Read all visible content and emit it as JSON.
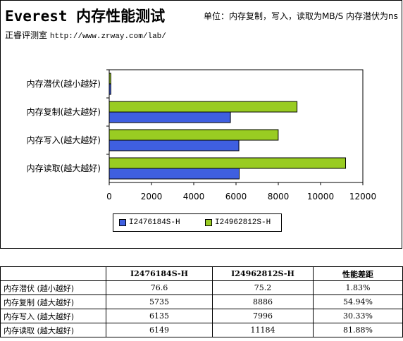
{
  "header": {
    "title": "Everest 内存性能测试",
    "unit_note": "单位：内存复制，写入，读取为MB/S 内存潜伏为ns",
    "source_name": "正睿评测室",
    "source_url": "http://www.zrway.com/lab/"
  },
  "chart_data": {
    "type": "bar",
    "orientation": "horizontal",
    "categories": [
      "内存潜伏(越小越好)",
      "内存复制(越大越好)",
      "内存写入(越大越好)",
      "内存读取(越大越好)"
    ],
    "series": [
      {
        "name": "I2476184S-H",
        "color": "#3f5fe0",
        "values": [
          76.6,
          5735,
          6135,
          6149
        ]
      },
      {
        "name": "I24962812S-H",
        "color": "#99cc22",
        "values": [
          75.2,
          8886,
          7996,
          11184
        ]
      }
    ],
    "xlim": [
      0,
      12000
    ],
    "xticks": [
      "0",
      "2000",
      "4000",
      "6000",
      "8000",
      "10000",
      "12000"
    ],
    "grid": false,
    "legend_position": "bottom"
  },
  "table": {
    "headers": [
      "",
      "I2476184S-H",
      "I24962812S-H",
      "性能差距"
    ],
    "rows": [
      [
        "内存潜伏 (越小越好)",
        "76.6",
        "75.2",
        "1.83%"
      ],
      [
        "内存复制 (越大越好)",
        "5735",
        "8886",
        "54.94%"
      ],
      [
        "内存写入 (越大越好)",
        "6135",
        "7996",
        "30.33%"
      ],
      [
        "内存读取 (越大越好)",
        "6149",
        "11184",
        "81.88%"
      ]
    ]
  }
}
